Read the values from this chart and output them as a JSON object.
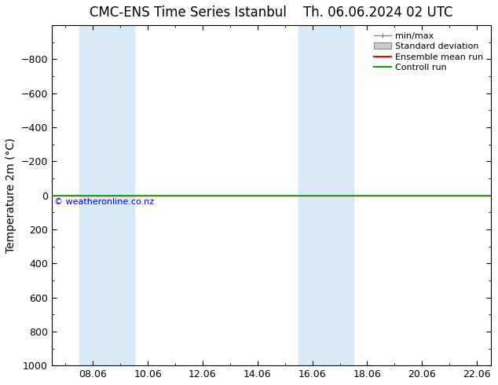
{
  "title_left": "CMC-ENS Time Series Istanbul",
  "title_right": "Th. 06.06.2024 02 UTC",
  "ylabel": "Temperature 2m (°C)",
  "ylim_bottom": -1000,
  "ylim_top": 1000,
  "yticks": [
    -800,
    -600,
    -400,
    -200,
    0,
    200,
    400,
    600,
    800,
    1000
  ],
  "xtick_labels": [
    "08.06",
    "10.06",
    "12.06",
    "14.06",
    "16.06",
    "18.06",
    "20.06",
    "22.06"
  ],
  "xtick_positions": [
    2,
    4,
    6,
    8,
    10,
    12,
    14,
    16
  ],
  "xlim_left": 0.5,
  "xlim_right": 16.5,
  "blue_bands": [
    [
      1.5,
      2.5
    ],
    [
      2.5,
      3.5
    ],
    [
      9.5,
      10.5
    ],
    [
      10.5,
      11.5
    ]
  ],
  "control_run_y": 0,
  "ensemble_mean_y": 0,
  "copyright_text": "© weatheronline.co.nz",
  "background_color": "#ffffff",
  "band_color": "#d8eaf8",
  "control_run_color": "#00aa00",
  "ensemble_mean_color": "#ff0000",
  "legend_minmax_color": "#888888",
  "legend_std_fill": "#cccccc",
  "legend_std_edge": "#888888",
  "title_fontsize": 12,
  "axis_fontsize": 10,
  "tick_fontsize": 9,
  "legend_fontsize": 8,
  "copyright_color": "#0000cc",
  "copyright_fontsize": 8
}
